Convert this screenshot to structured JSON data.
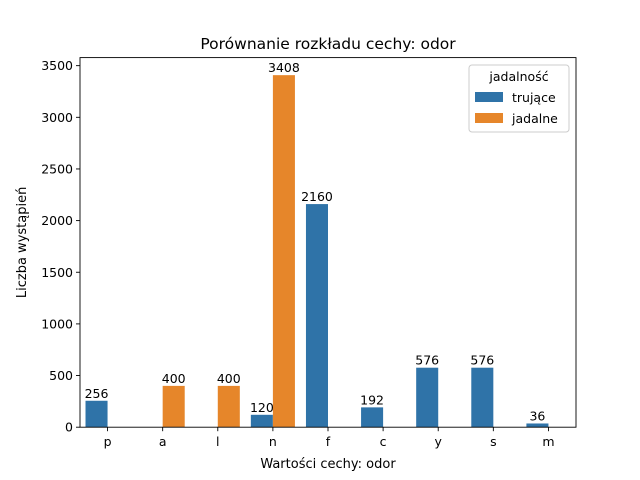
{
  "chart_data": {
    "type": "bar",
    "title": "Porównanie rozkładu cechy: odor",
    "xlabel": "Wartości cechy: odor",
    "ylabel": "Liczba wystąpień",
    "categories": [
      "p",
      "a",
      "l",
      "n",
      "f",
      "c",
      "y",
      "s",
      "m"
    ],
    "series": [
      {
        "name": "trujące",
        "color": "#2f73a8",
        "values": [
          256,
          0,
          0,
          120,
          2160,
          192,
          576,
          576,
          36
        ]
      },
      {
        "name": "jadalne",
        "color": "#e6862a",
        "values": [
          0,
          400,
          400,
          3408,
          0,
          0,
          0,
          0,
          0
        ]
      }
    ],
    "data_labels": [
      [
        "256",
        "",
        "",
        "120",
        "2160",
        "192",
        "576",
        "576",
        "36"
      ],
      [
        "",
        "400",
        "400",
        "3408",
        "",
        "",
        "",
        "",
        ""
      ]
    ],
    "yticks": [
      0,
      500,
      1000,
      1500,
      2000,
      2500,
      3000,
      3500
    ],
    "ylim": [
      0,
      3578
    ],
    "legend": {
      "title": "jadalność",
      "placement": "top-right"
    },
    "grid": false
  }
}
